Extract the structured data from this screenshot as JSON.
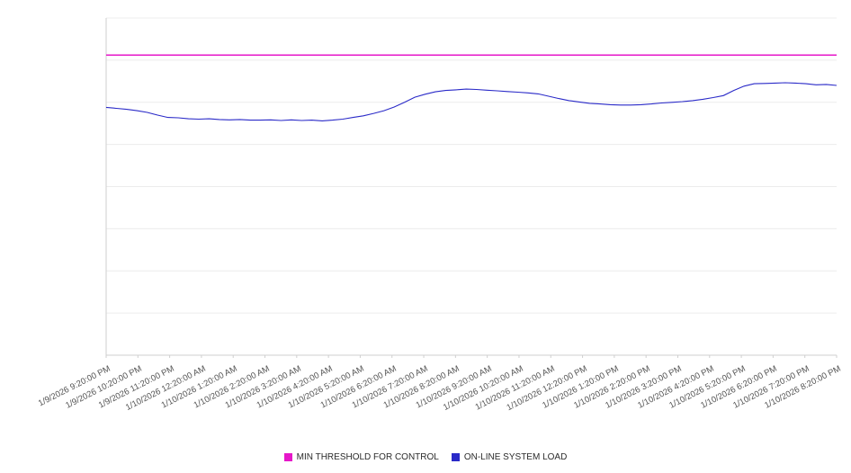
{
  "chart_data": {
    "type": "line",
    "title": "",
    "xlabel": "",
    "ylabel": "",
    "ylim": [
      0,
      100
    ],
    "grid": {
      "horizontal": true,
      "interval": 12.5,
      "color": "#ececec",
      "axis_color": "#cfcfcf"
    },
    "legend_position": "bottom",
    "categories": [
      "1/9/2026 9:20:00 PM",
      "1/9/2026 10:20:00 PM",
      "1/9/2026 11:20:00 PM",
      "1/10/2026 12:20:00 AM",
      "1/10/2026 1:20:00 AM",
      "1/10/2026 2:20:00 AM",
      "1/10/2026 3:20:00 AM",
      "1/10/2026 4:20:00 AM",
      "1/10/2026 5:20:00 AM",
      "1/10/2026 6:20:00 AM",
      "1/10/2026 7:20:00 AM",
      "1/10/2026 8:20:00 AM",
      "1/10/2026 9:20:00 AM",
      "1/10/2026 10:20:00 AM",
      "1/10/2026 11:20:00 AM",
      "1/10/2026 12:20:00 PM",
      "1/10/2026 1:20:00 PM",
      "1/10/2026 2:20:00 PM",
      "1/10/2026 3:20:00 PM",
      "1/10/2026 4:20:00 PM",
      "1/10/2026 5:20:00 PM",
      "1/10/2026 6:20:00 PM",
      "1/10/2026 7:20:00 PM",
      "1/10/2026 8:20:00 PM"
    ],
    "series": [
      {
        "name": "MIN THRESHOLD FOR CONTROL",
        "type": "threshold",
        "color": "#e617c9",
        "value": 89
      },
      {
        "name": "ON-LINE SYSTEM LOAD",
        "type": "line",
        "color": "#2a2ac8",
        "points_per_category": 3,
        "values": [
          73.5,
          73.2,
          72.9,
          72.5,
          72.0,
          71.2,
          70.5,
          70.4,
          70.1,
          70.0,
          70.1,
          69.9,
          69.8,
          69.9,
          69.7,
          69.7,
          69.8,
          69.6,
          69.8,
          69.6,
          69.7,
          69.5,
          69.7,
          70.0,
          70.5,
          71.0,
          71.7,
          72.5,
          73.6,
          75.0,
          76.5,
          77.4,
          78.1,
          78.5,
          78.7,
          78.9,
          78.8,
          78.6,
          78.4,
          78.2,
          78.0,
          77.8,
          77.5,
          76.8,
          76.1,
          75.5,
          75.1,
          74.7,
          74.5,
          74.3,
          74.2,
          74.2,
          74.3,
          74.5,
          74.8,
          75.0,
          75.2,
          75.5,
          75.9,
          76.4,
          77.0,
          78.5,
          79.8,
          80.5,
          80.6,
          80.7,
          80.8,
          80.7,
          80.5,
          80.2,
          80.3,
          80.0
        ]
      }
    ]
  }
}
